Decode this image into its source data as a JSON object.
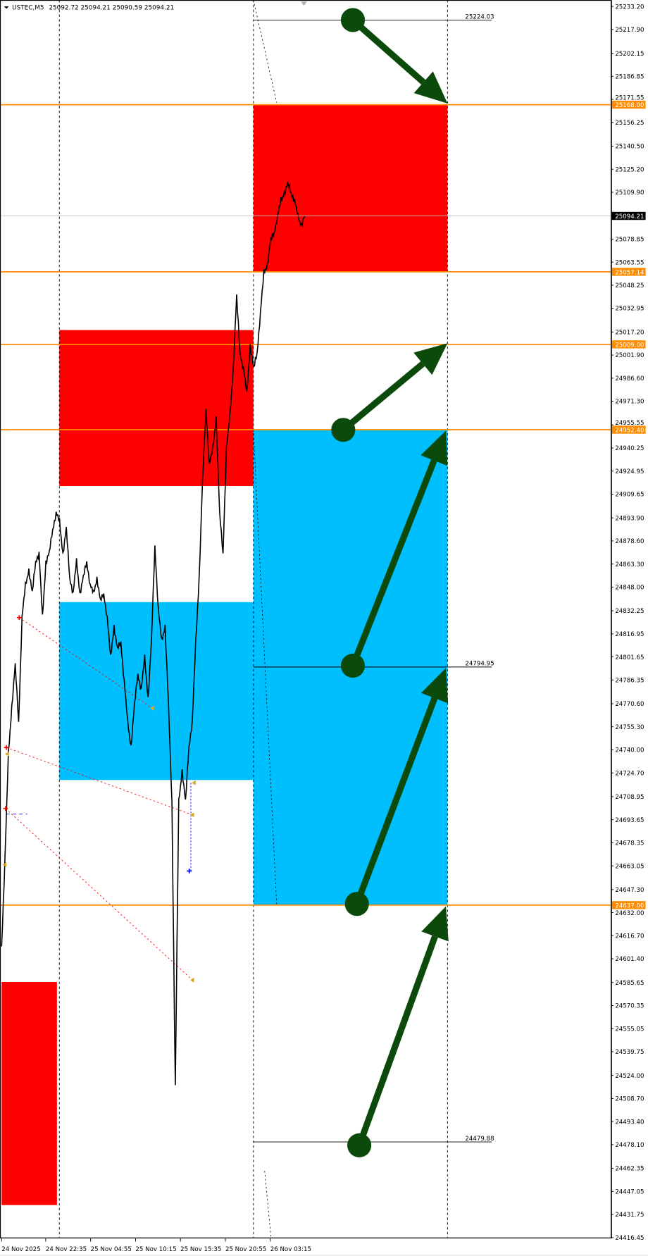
{
  "header": {
    "menu_icon": "triangle-down-icon",
    "symbol": "USTEC,M5",
    "ohlc": "25092.72 25094.21 25090.59 25094.21"
  },
  "colors": {
    "supply_zone": "#ff0000",
    "demand_zone": "#00bfff",
    "level_line": "#ff8c00",
    "arrow": "#0b4a0b",
    "current_price": "#000000"
  },
  "price_axis": {
    "ticks": [
      "25233.20",
      "25217.90",
      "25202.15",
      "25186.85",
      "25171.55",
      "25156.25",
      "25140.50",
      "25125.20",
      "25109.90",
      "25078.85",
      "25063.55",
      "25048.25",
      "25032.95",
      "25017.20",
      "25001.90",
      "24986.60",
      "24971.30",
      "24955.55",
      "24940.25",
      "24924.95",
      "24909.65",
      "24893.90",
      "24878.60",
      "24863.30",
      "24848.00",
      "24832.25",
      "24816.95",
      "24801.65",
      "24786.35",
      "24770.60",
      "24755.30",
      "24740.00",
      "24724.70",
      "24708.95",
      "24693.65",
      "24678.35",
      "24663.05",
      "24647.30",
      "24632.00",
      "24616.70",
      "24601.40",
      "24585.65",
      "24570.35",
      "24555.05",
      "24539.75",
      "24524.00",
      "24508.70",
      "24493.40",
      "24478.10",
      "24462.35",
      "24447.05",
      "24431.75",
      "24416.45"
    ],
    "range": [
      24416.45,
      25233.2
    ],
    "current_price": "25094.21",
    "levels": [
      "25168.00",
      "25057.14",
      "25009.00",
      "24952.40",
      "24637.00"
    ]
  },
  "time_axis": {
    "labels": [
      "24 Nov 2025",
      "24 Nov 22:35",
      "25 Nov 04:55",
      "25 Nov 10:15",
      "25 Nov 15:35",
      "25 Nov 20:55",
      "26 Nov 03:15"
    ]
  },
  "targets": {
    "top": "25224.03",
    "mid": "24794.95",
    "bottom": "24479.88"
  },
  "zones": [
    {
      "type": "supply",
      "top": 25168.0,
      "bottom": 25057.14
    },
    {
      "type": "supply",
      "top": 25018.5,
      "bottom": 24915.0
    },
    {
      "type": "demand",
      "top": 24838.0,
      "bottom": 24720.0
    },
    {
      "type": "demand",
      "top": 24952.4,
      "bottom": 24637.0
    },
    {
      "type": "supply",
      "top": 24586.0,
      "bottom": 24438.0
    }
  ],
  "price_path": [
    24609.6,
    24668.1,
    24737.3,
    24769.2,
    24795.8,
    24758.6,
    24827.7,
    24849.0,
    24859.7,
    24843.7,
    24865.0,
    24870.3,
    24827.7,
    24865.0,
    24870.3,
    24886.3,
    24896.9,
    24891.6,
    24870.3,
    24886.3,
    24854.3,
    24843.7,
    24865.0,
    24843.7,
    24854.3,
    24865.0,
    24849.0,
    24843.7,
    24854.3,
    24838.4,
    24843.7,
    24827.7,
    24801.1,
    24822.4,
    24806.5,
    24811.8,
    24785.2,
    24758.6,
    24742.6,
    24769.2,
    24790.5,
    24779.9,
    24801.1,
    24774.5,
    24811.8,
    24875.6,
    24833.1,
    24811.8,
    24822.4,
    24769.2,
    24705.4,
    24516.5,
    24705.4,
    24726.6,
    24705.4,
    24742.6,
    24758.6,
    24811.8,
    24854.3,
    24918.2,
    24966.1,
    24928.8,
    24939.5,
    24960.8,
    24896.9,
    24870.3,
    24939.5,
    24960.8,
    24992.7,
    25040.6,
    25003.3,
    24992.7,
    24976.7,
    25008.6,
    24992.7,
    25003.3,
    25029.9,
    25056.5,
    25061.9,
    25077.8,
    25083.1,
    25093.8,
    25104.4,
    25109.8,
    25115.1,
    25109.8,
    25104.4,
    25093.8,
    25088.5,
    25094.2
  ]
}
